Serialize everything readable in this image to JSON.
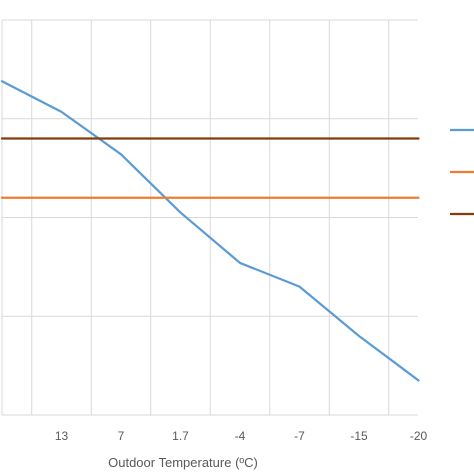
{
  "chart_data": {
    "type": "line",
    "x": [
      "",
      "13",
      "7",
      "1.7",
      "-4",
      "-7",
      "-15",
      "-20"
    ],
    "xlabel": "Outdoor Temperature (ºC)",
    "ylabel": "",
    "title": "",
    "ylim": [
      0,
      4
    ],
    "grid": true,
    "legend_position": "right",
    "series": [
      {
        "color": "#5b9bd5",
        "values": [
          3.38,
          3.07,
          2.64,
          2.05,
          1.54,
          1.3,
          0.8,
          0.35
        ]
      },
      {
        "color": "#ed7d31",
        "values": [
          2.2,
          2.2,
          2.2,
          2.2,
          2.2,
          2.2,
          2.2,
          2.2
        ]
      },
      {
        "color": "#843c0c",
        "values": [
          2.8,
          2.8,
          2.8,
          2.8,
          2.8,
          2.8,
          2.8,
          2.8
        ]
      }
    ]
  }
}
